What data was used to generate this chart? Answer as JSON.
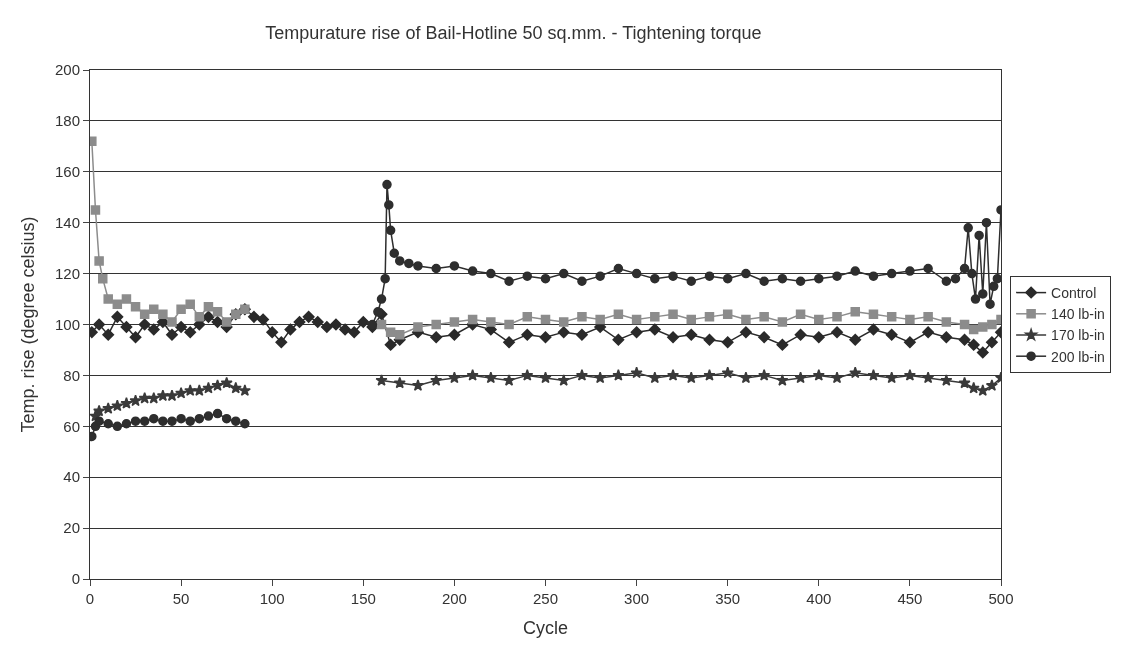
{
  "chart_data": {
    "type": "line",
    "title": "Tempurature rise of Bail-Hotline 50 sq.mm. - Tightening torque",
    "xlabel": "Cycle",
    "ylabel": "Temp. rise (degree celsius)",
    "xlim": [
      0,
      500
    ],
    "xticks": [
      0,
      50,
      100,
      150,
      200,
      250,
      300,
      350,
      400,
      450,
      500
    ],
    "ylim": [
      0,
      200
    ],
    "yticks": [
      0,
      20,
      40,
      60,
      80,
      100,
      120,
      140,
      160,
      180,
      200
    ],
    "grid": "y",
    "legend": "right",
    "series": [
      {
        "name": "Control",
        "color": "#2a2a2a",
        "marker": "diamond",
        "x": [
          1,
          5,
          10,
          15,
          20,
          25,
          30,
          35,
          40,
          45,
          50,
          55,
          60,
          65,
          70,
          75,
          80,
          85,
          90,
          95,
          100,
          105,
          110,
          115,
          120,
          125,
          130,
          135,
          140,
          145,
          150,
          155,
          160,
          165,
          170,
          180,
          190,
          200,
          210,
          220,
          230,
          240,
          250,
          260,
          270,
          280,
          290,
          300,
          310,
          320,
          330,
          340,
          350,
          360,
          370,
          380,
          390,
          400,
          410,
          420,
          430,
          440,
          450,
          460,
          470,
          480,
          485,
          490,
          495,
          500
        ],
        "values": [
          97,
          100,
          96,
          103,
          99,
          95,
          100,
          98,
          101,
          96,
          99,
          97,
          100,
          103,
          101,
          99,
          104,
          106,
          103,
          102,
          97,
          93,
          98,
          101,
          103,
          101,
          99,
          100,
          98,
          97,
          101,
          99,
          104,
          92,
          94,
          97,
          95,
          96,
          100,
          98,
          93,
          96,
          95,
          97,
          96,
          99,
          94,
          97,
          98,
          95,
          96,
          94,
          93,
          97,
          95,
          92,
          96,
          95,
          97,
          94,
          98,
          96,
          93,
          97,
          95,
          94,
          92,
          89,
          93,
          97
        ]
      },
      {
        "name": "140 lb-in",
        "color": "#8c8c8c",
        "marker": "square",
        "x": [
          1,
          3,
          5,
          7,
          10,
          15,
          20,
          25,
          30,
          35,
          40,
          45,
          50,
          55,
          60,
          65,
          70,
          75,
          80,
          85,
          120,
          160,
          165,
          170,
          180,
          190,
          200,
          210,
          220,
          230,
          240,
          250,
          260,
          270,
          280,
          290,
          300,
          310,
          320,
          330,
          340,
          350,
          360,
          370,
          380,
          390,
          400,
          410,
          420,
          430,
          440,
          450,
          460,
          470,
          480,
          485,
          490,
          495,
          500
        ],
        "values": [
          172,
          145,
          125,
          118,
          110,
          108,
          110,
          107,
          104,
          106,
          104,
          101,
          106,
          108,
          103,
          107,
          105,
          101,
          104,
          106,
          null,
          100,
          97,
          96,
          99,
          100,
          101,
          102,
          101,
          100,
          103,
          102,
          101,
          103,
          102,
          104,
          102,
          103,
          104,
          102,
          103,
          104,
          102,
          103,
          101,
          104,
          102,
          103,
          105,
          104,
          103,
          102,
          103,
          101,
          100,
          98,
          99,
          100,
          102
        ]
      },
      {
        "name": "170 lb-in",
        "color": "#3a3a3a",
        "marker": "star",
        "x": [
          3,
          5,
          10,
          15,
          20,
          25,
          30,
          35,
          40,
          45,
          50,
          55,
          60,
          65,
          70,
          75,
          80,
          85,
          120,
          160,
          170,
          180,
          190,
          200,
          210,
          220,
          230,
          240,
          250,
          260,
          270,
          280,
          290,
          300,
          310,
          320,
          330,
          340,
          350,
          360,
          370,
          380,
          390,
          400,
          410,
          420,
          430,
          440,
          450,
          460,
          470,
          480,
          485,
          490,
          495,
          500
        ],
        "values": [
          64,
          66,
          67,
          68,
          69,
          70,
          71,
          71,
          72,
          72,
          73,
          74,
          74,
          75,
          76,
          77,
          75,
          74,
          null,
          78,
          77,
          76,
          78,
          79,
          80,
          79,
          78,
          80,
          79,
          78,
          80,
          79,
          80,
          81,
          79,
          80,
          79,
          80,
          81,
          79,
          80,
          78,
          79,
          80,
          79,
          81,
          80,
          79,
          80,
          79,
          78,
          77,
          75,
          74,
          76,
          79
        ]
      },
      {
        "name": "200 lb-in",
        "color": "#2e2e2e",
        "marker": "circle",
        "x": [
          1,
          3,
          5,
          10,
          15,
          20,
          25,
          30,
          35,
          40,
          45,
          50,
          55,
          60,
          65,
          70,
          75,
          80,
          85,
          120,
          155,
          158,
          160,
          162,
          163,
          164,
          165,
          167,
          170,
          175,
          180,
          190,
          200,
          210,
          220,
          230,
          240,
          250,
          260,
          270,
          280,
          290,
          300,
          310,
          320,
          330,
          340,
          350,
          360,
          370,
          380,
          390,
          400,
          410,
          420,
          430,
          440,
          450,
          460,
          470,
          475,
          480,
          482,
          484,
          486,
          488,
          490,
          492,
          494,
          496,
          498,
          500
        ],
        "values": [
          56,
          60,
          62,
          61,
          60,
          61,
          62,
          62,
          63,
          62,
          62,
          63,
          62,
          63,
          64,
          65,
          63,
          62,
          61,
          null,
          100,
          105,
          110,
          118,
          155,
          147,
          137,
          128,
          125,
          124,
          123,
          122,
          123,
          121,
          120,
          117,
          119,
          118,
          120,
          117,
          119,
          122,
          120,
          118,
          119,
          117,
          119,
          118,
          120,
          117,
          118,
          117,
          118,
          119,
          121,
          119,
          120,
          121,
          122,
          117,
          118,
          122,
          138,
          120,
          110,
          135,
          112,
          140,
          108,
          115,
          118,
          145
        ]
      }
    ]
  }
}
